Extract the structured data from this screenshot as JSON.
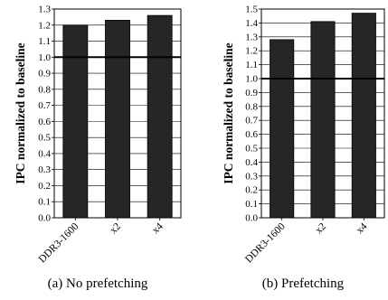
{
  "chart_data": [
    {
      "type": "bar",
      "categories": [
        "DDR3-1600",
        "x2",
        "x4"
      ],
      "values": [
        1.2,
        1.23,
        1.26
      ],
      "ylabel": "IPC normalized to baseline",
      "ylim": [
        0,
        1.3
      ],
      "ytick_labels": [
        "0.0",
        "0.1",
        "0.2",
        "0.3",
        "0.4",
        "0.5",
        "0.6",
        "0.7",
        "0.8",
        "0.9",
        "1.0",
        "1.1",
        "1.2",
        "1.3"
      ],
      "reference_line": 1.0,
      "grid": true,
      "caption": "(a)  No prefetching",
      "bar_color": "#262626"
    },
    {
      "type": "bar",
      "categories": [
        "DDR3-1600",
        "x2",
        "x4"
      ],
      "values": [
        1.28,
        1.41,
        1.47
      ],
      "ylabel": "IPC normalized to baseline",
      "ylim": [
        0,
        1.5
      ],
      "ytick_labels": [
        "0.0",
        "0.1",
        "0.2",
        "0.3",
        "0.4",
        "0.5",
        "0.6",
        "0.7",
        "0.8",
        "0.9",
        "1.0",
        "1.1",
        "1.2",
        "1.3",
        "1.4",
        "1.5"
      ],
      "reference_line": 1.0,
      "grid": true,
      "caption": "(b)  Prefetching",
      "bar_color": "#262626"
    }
  ]
}
